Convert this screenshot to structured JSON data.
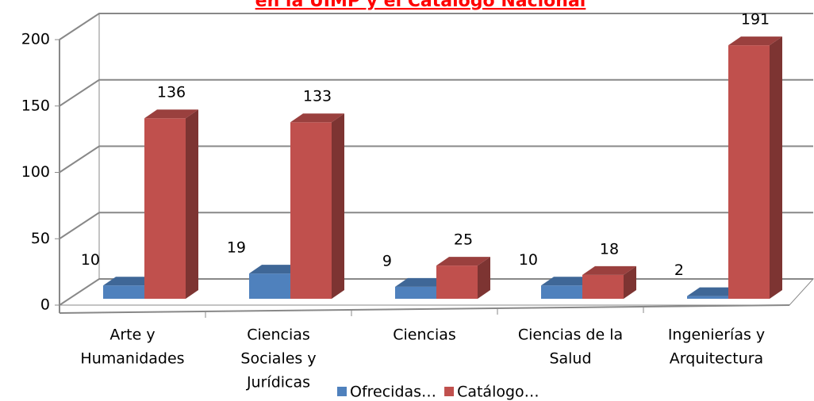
{
  "chart_data": {
    "type": "bar3d",
    "title": "en la UIMP y el Catálogo Nacional",
    "categories": [
      [
        "Arte y",
        "Humanidades"
      ],
      [
        "Ciencias",
        "Sociales y",
        "Jurídicas"
      ],
      [
        "Ciencias"
      ],
      [
        "Ciencias de la",
        "Salud"
      ],
      [
        "Ingenierías y",
        "Arquitectura"
      ]
    ],
    "series": [
      {
        "name": "Ofrecidas…",
        "color": "#4f81bd",
        "values": [
          10,
          19,
          9,
          10,
          2
        ]
      },
      {
        "name": "Catálogo…",
        "color": "#c0504d",
        "values": [
          136,
          133,
          25,
          18,
          191
        ]
      }
    ],
    "ylim": [
      0,
      200
    ],
    "yticks": [
      0,
      50,
      100,
      150,
      200
    ],
    "grid": true,
    "legend": "bottom"
  }
}
